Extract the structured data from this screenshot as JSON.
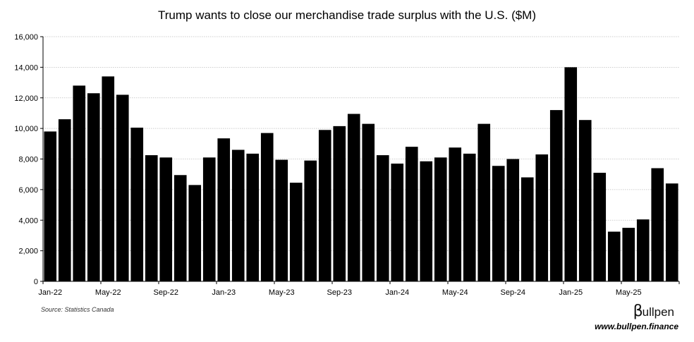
{
  "chart_data": {
    "type": "bar",
    "title": "Trump wants to close our merchandise trade surplus with the U.S. ($M)",
    "xlabel": "",
    "ylabel": "",
    "ylim": [
      0,
      16000
    ],
    "yticks": [
      0,
      2000,
      4000,
      6000,
      8000,
      10000,
      12000,
      14000,
      16000
    ],
    "ytick_labels": [
      "0",
      "2,000",
      "4,000",
      "6,000",
      "8,000",
      "10,000",
      "12,000",
      "14,000",
      "16,000"
    ],
    "grid": "horizontal-dotted",
    "categories": [
      "Jan-22",
      "Feb-22",
      "Mar-22",
      "Apr-22",
      "May-22",
      "Jun-22",
      "Jul-22",
      "Aug-22",
      "Sep-22",
      "Oct-22",
      "Nov-22",
      "Dec-22",
      "Jan-23",
      "Feb-23",
      "Mar-23",
      "Apr-23",
      "May-23",
      "Jun-23",
      "Jul-23",
      "Aug-23",
      "Sep-23",
      "Oct-23",
      "Nov-23",
      "Dec-23",
      "Jan-24",
      "Feb-24",
      "Mar-24",
      "Apr-24",
      "May-24",
      "Jun-24",
      "Jul-24",
      "Aug-24",
      "Sep-24",
      "Oct-24",
      "Nov-24",
      "Dec-24",
      "Jan-25",
      "Feb-25",
      "Mar-25",
      "Apr-25",
      "May-25",
      "Jun-25",
      "Jul-25",
      "Aug-25"
    ],
    "xtick_labels_shown": [
      "Jan-22",
      "May-22",
      "Sep-22",
      "Jan-23",
      "May-23",
      "Sep-23",
      "Jan-24",
      "May-24",
      "Sep-24",
      "Jan-25",
      "May-25"
    ],
    "values": [
      9800,
      10600,
      12800,
      12300,
      13400,
      12200,
      10050,
      8250,
      8100,
      6950,
      6300,
      8100,
      9350,
      8600,
      8350,
      9700,
      7950,
      6450,
      7900,
      9900,
      10150,
      10950,
      10300,
      8250,
      7700,
      8800,
      7850,
      8100,
      8750,
      8350,
      10300,
      7550,
      8000,
      6800,
      8300,
      11200,
      14000,
      10550,
      7100,
      3250,
      3500,
      4050,
      7400,
      6400
    ],
    "bar_color": "#000000"
  },
  "source": "Source: Statistics Canada",
  "brand": {
    "logo_symbol": "β",
    "logo_text": "ullpen",
    "url": "www.bullpen.finance"
  }
}
